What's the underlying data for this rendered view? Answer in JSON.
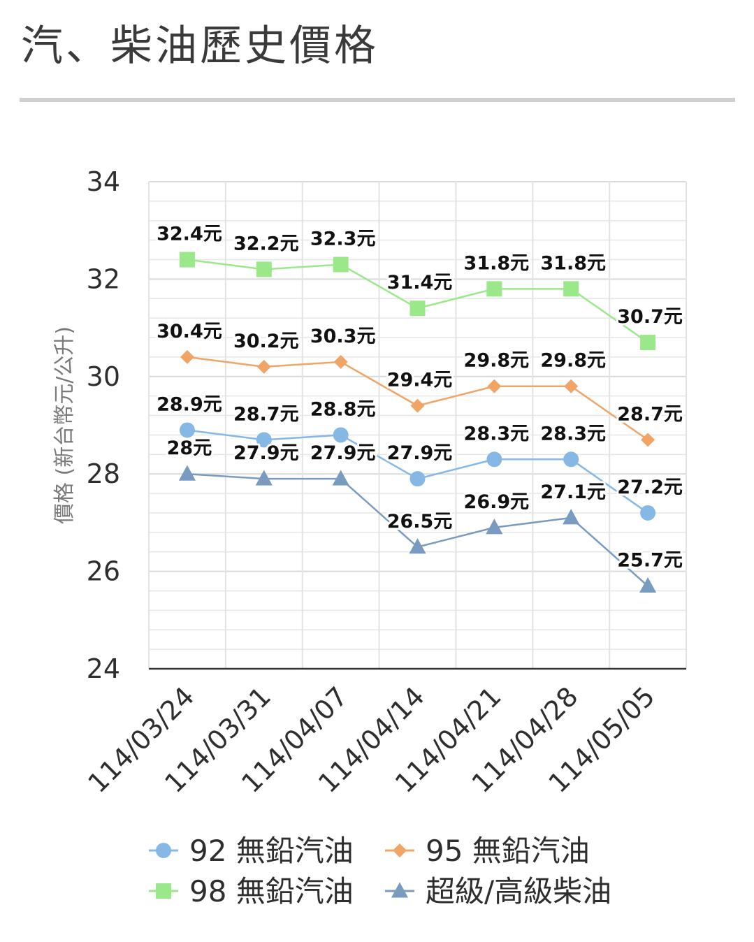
{
  "page": {
    "title": "汽、柴油歷史價格"
  },
  "colors": {
    "s92": "#86b8e6",
    "s95": "#f0a465",
    "s98": "#9be88a",
    "diesel": "#7a9bc0",
    "grid": "#e6e6e6",
    "axis": "#333333"
  },
  "chart_data": {
    "type": "line",
    "ylabel": "價格 (新台幣元/公升)",
    "ylim": [
      24,
      34
    ],
    "yticks": [
      24,
      26,
      28,
      30,
      32,
      34
    ],
    "categories": [
      "114/03/24",
      "114/03/31",
      "114/04/07",
      "114/04/14",
      "114/04/21",
      "114/04/28",
      "114/05/05"
    ],
    "label_suffix": "元",
    "series": [
      {
        "name": "92 無鉛汽油",
        "marker": "circle",
        "color": "#86b8e6",
        "values": [
          28.9,
          28.7,
          28.8,
          27.9,
          28.3,
          28.3,
          27.2
        ]
      },
      {
        "name": "95 無鉛汽油",
        "marker": "diamond",
        "color": "#f0a465",
        "values": [
          30.4,
          30.2,
          30.3,
          29.4,
          29.8,
          29.8,
          28.7
        ]
      },
      {
        "name": "98 無鉛汽油",
        "marker": "square",
        "color": "#9be88a",
        "values": [
          32.4,
          32.2,
          32.3,
          31.4,
          31.8,
          31.8,
          30.7
        ]
      },
      {
        "name": "超級/高級柴油",
        "marker": "triangle",
        "color": "#7a9bc0",
        "values": [
          28,
          27.9,
          27.9,
          26.5,
          26.9,
          27.1,
          25.7
        ]
      }
    ],
    "grid": true,
    "legend_position": "bottom"
  }
}
